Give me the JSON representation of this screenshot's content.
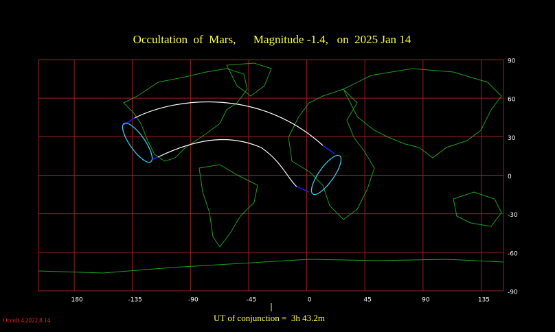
{
  "map": {
    "title": "Occultation  of  Mars,      Magnitude -1.4,   on  2025 Jan 14",
    "lonlim": [
      -207.7,
      152.3
    ],
    "latlim": [
      -90,
      90
    ],
    "lon_ticks": [
      {
        "value": -180,
        "label": "180"
      },
      -135,
      -90,
      -45,
      0,
      45,
      90,
      135
    ],
    "lat_ticks": [
      90,
      60,
      30,
      0,
      -30,
      -60,
      -90
    ]
  },
  "footer": {
    "conjunction": "UT of conjunction =  3h 43.2m",
    "version": "Occult 4.2022.8.14"
  }
}
